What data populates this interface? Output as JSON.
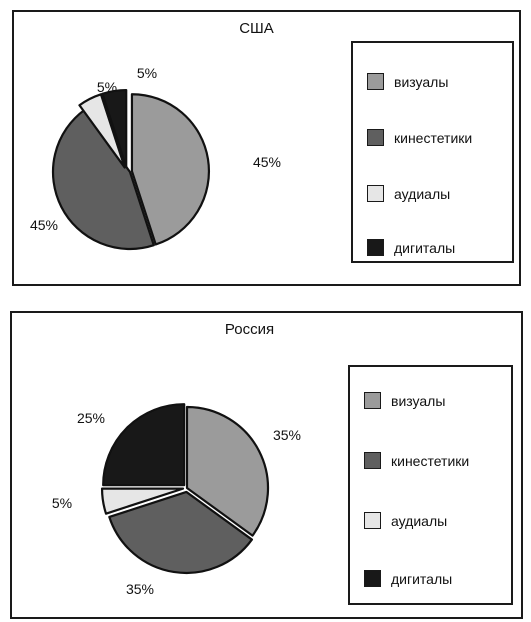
{
  "legend_labels": [
    "визуалы",
    "кинестетики",
    "аудиалы",
    "дигиталы"
  ],
  "colors": [
    "#9b9b9b",
    "#5f5f5f",
    "#e6e6e6",
    "#181818"
  ],
  "chart_data": [
    {
      "type": "pie",
      "title": "США",
      "categories": [
        "визуалы",
        "кинестетики",
        "аудиалы",
        "дигиталы"
      ],
      "values": [
        45,
        45,
        5,
        5
      ],
      "labels": [
        "45%",
        "45%",
        "5%",
        "5%"
      ],
      "legend_placement": "right"
    },
    {
      "type": "pie",
      "title": "Россия",
      "categories": [
        "визуалы",
        "кинестетики",
        "аудиалы",
        "дигиталы"
      ],
      "values": [
        35,
        35,
        5,
        25
      ],
      "labels": [
        "35%",
        "35%",
        "5%",
        "25%"
      ],
      "legend_placement": "right"
    }
  ]
}
